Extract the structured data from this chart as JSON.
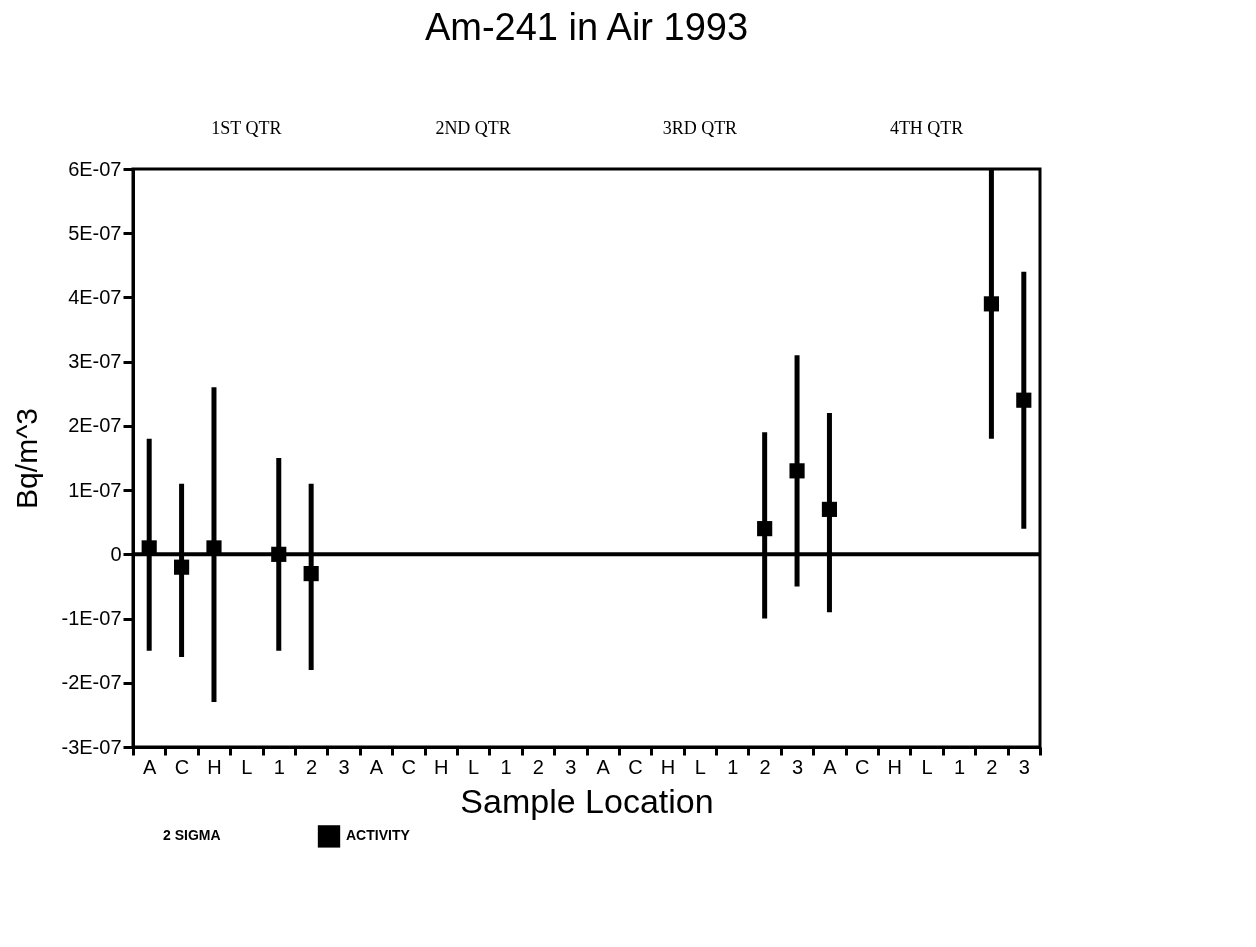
{
  "chart_data": {
    "type": "scatter",
    "title": "Am-241 in Air 1993",
    "xlabel": "Sample Location",
    "ylabel": "Bq/m^3",
    "categories": [
      "A",
      "C",
      "H",
      "L",
      "1",
      "2",
      "3",
      "A",
      "C",
      "H",
      "L",
      "1",
      "2",
      "3",
      "A",
      "C",
      "H",
      "L",
      "1",
      "2",
      "3",
      "A",
      "C",
      "H",
      "L",
      "1",
      "2",
      "3"
    ],
    "ylim": [
      -3e-07,
      6e-07
    ],
    "yticks": [
      {
        "value": -3e-07,
        "label": "-3E-07"
      },
      {
        "value": -2e-07,
        "label": "-2E-07"
      },
      {
        "value": -1e-07,
        "label": "-1E-07"
      },
      0,
      {
        "value": 1e-07,
        "label": "1E-07"
      },
      {
        "value": 2e-07,
        "label": "2E-07"
      },
      {
        "value": 3e-07,
        "label": "3E-07"
      },
      {
        "value": 4e-07,
        "label": "4E-07"
      },
      {
        "value": 5e-07,
        "label": "5E-07"
      },
      {
        "value": 6e-07,
        "label": "6E-07"
      }
    ],
    "series": [
      {
        "name": "ACTIVITY",
        "color": "#000000",
        "values": [
          1e-08,
          -2e-08,
          1e-08,
          null,
          0,
          -3e-08,
          null,
          null,
          null,
          null,
          null,
          null,
          null,
          null,
          null,
          null,
          null,
          null,
          null,
          4e-08,
          1.3e-07,
          7e-08,
          null,
          null,
          null,
          null,
          3.9e-07,
          2.4e-07
        ],
        "errors": [
          [
            -1.5e-07,
            1.8e-07
          ],
          [
            -1.6e-07,
            1.1e-07
          ],
          [
            -2.3e-07,
            2.6e-07
          ],
          null,
          [
            -1.5e-07,
            1.5e-07
          ],
          [
            -1.8e-07,
            1.1e-07
          ],
          null,
          null,
          null,
          null,
          null,
          null,
          null,
          null,
          null,
          null,
          null,
          null,
          null,
          [
            -1e-07,
            1.9e-07
          ],
          [
            -5e-08,
            3.1e-07
          ],
          [
            -9e-08,
            2.2e-07
          ],
          null,
          null,
          null,
          null,
          [
            1.8e-07,
            6e-07
          ],
          [
            4e-08,
            4.4e-07
          ]
        ]
      }
    ],
    "marker": "square",
    "ref_lines": [
      {
        "axis": "y",
        "value": 0,
        "color": "#000000",
        "line_style": "solid"
      }
    ],
    "annotations": [
      "2 SIGMA",
      "1ST QTR",
      "2ND QTR",
      "3RD QTR",
      "4TH QTR"
    ],
    "legend": "bottom",
    "grid": false
  }
}
